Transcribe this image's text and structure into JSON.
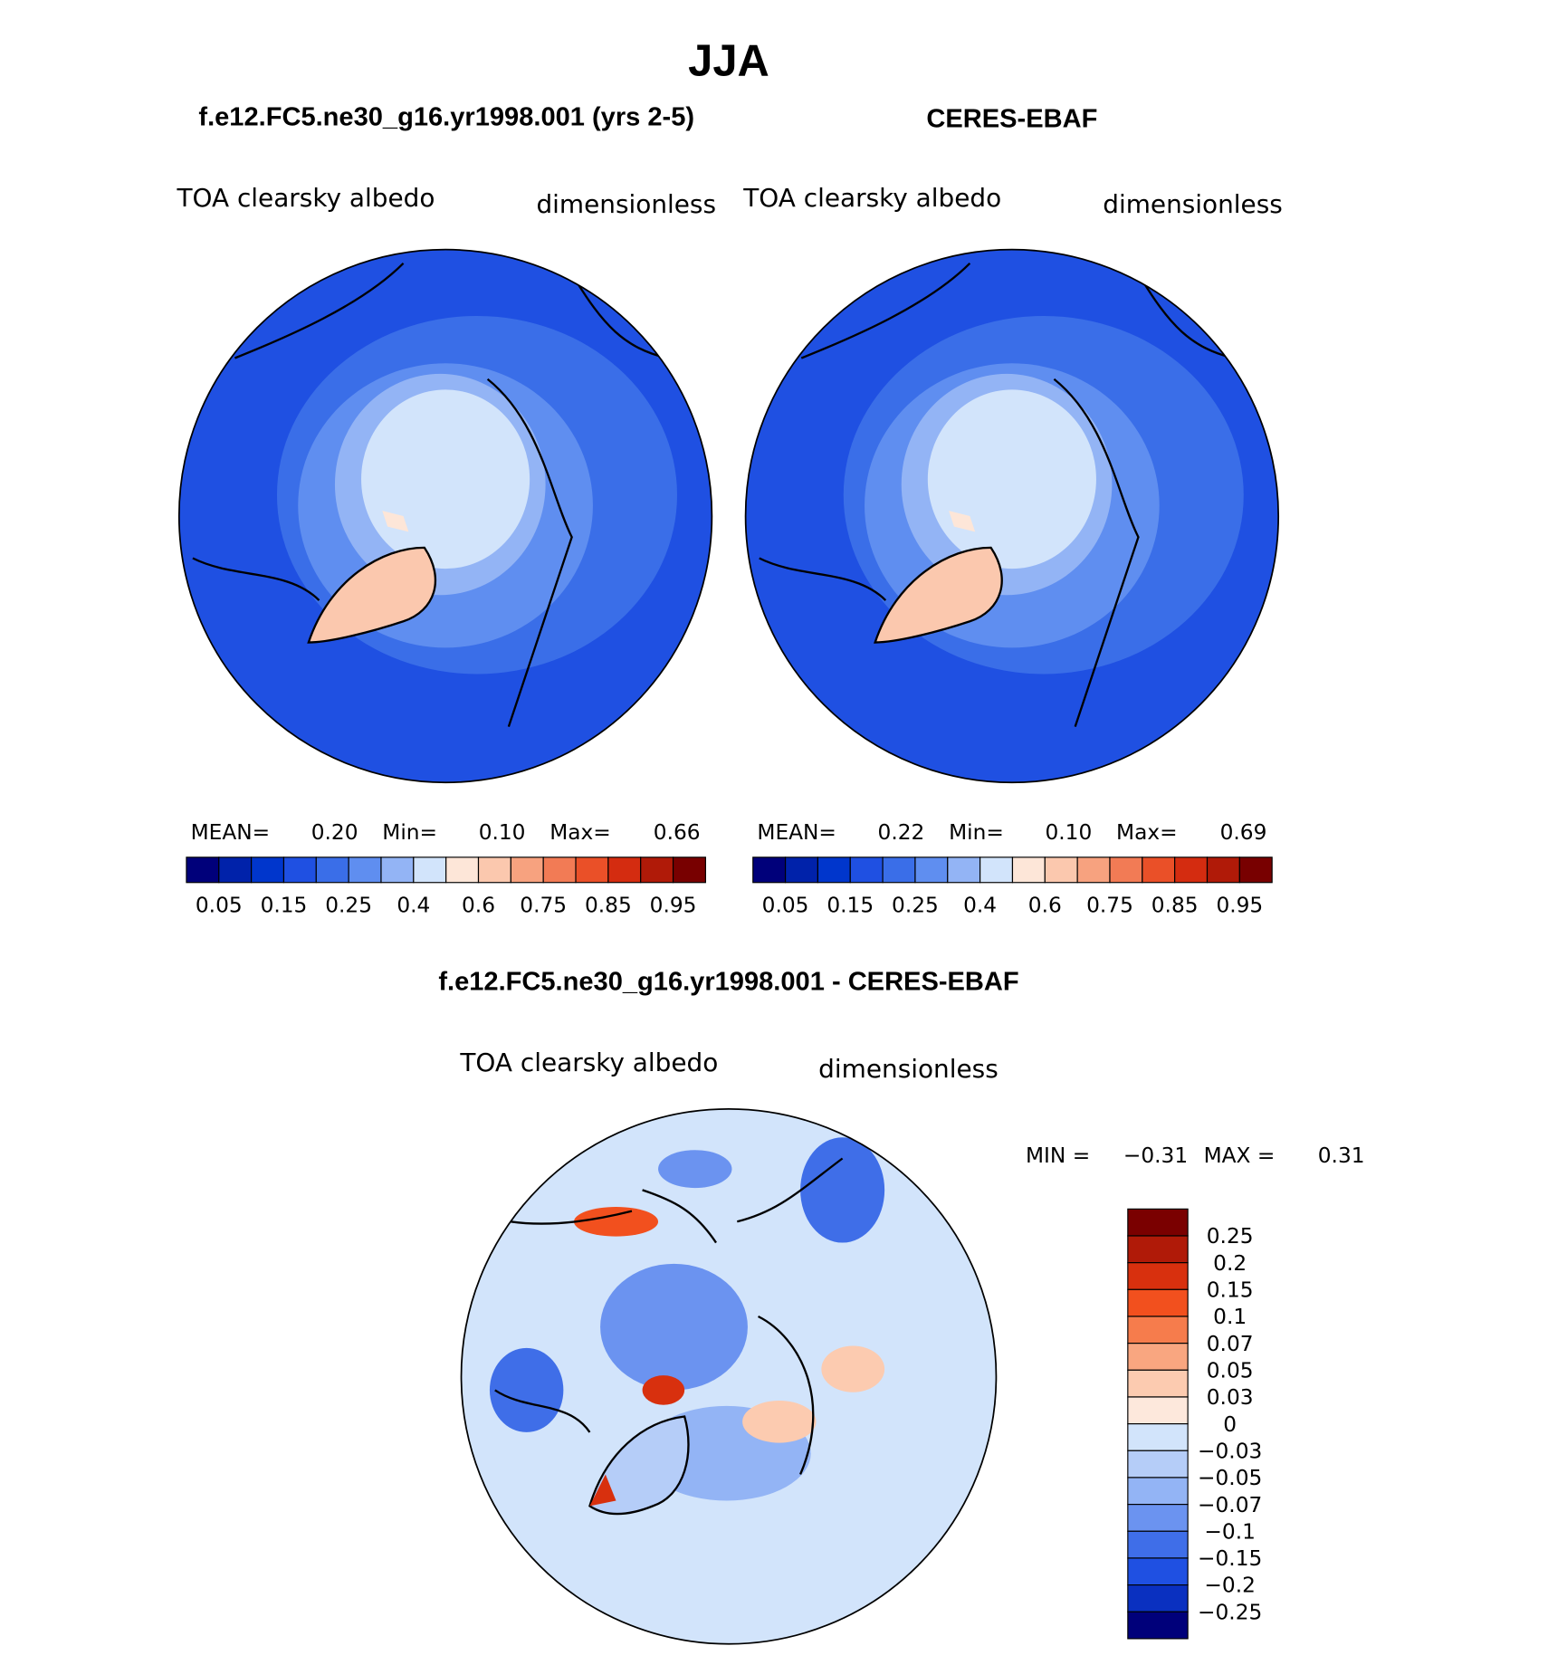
{
  "title": "JJA",
  "panels": [
    {
      "title": "f.e12.FC5.ne30_g16.yr1998.001 (yrs 2-5)",
      "variable": "TOA clearsky albedo",
      "units": "dimensionless",
      "stats": [
        {
          "label": "MEAN=",
          "value": "0.20"
        },
        {
          "label": "Min=",
          "value": "0.10"
        },
        {
          "label": "Max=",
          "value": "0.66"
        }
      ]
    },
    {
      "title": "CERES-EBAF",
      "variable": "TOA clearsky albedo",
      "units": "dimensionless",
      "stats": [
        {
          "label": "MEAN=",
          "value": "0.22"
        },
        {
          "label": "Min=",
          "value": "0.10"
        },
        {
          "label": "Max=",
          "value": "0.69"
        }
      ]
    }
  ],
  "colorbar": {
    "colors": [
      "#00007a",
      "#0022aa",
      "#0036cc",
      "#1f50e2",
      "#3a6ee8",
      "#5f8ef0",
      "#93b4f5",
      "#d2e4fb",
      "#fde6d8",
      "#fbc8ae",
      "#f7a27f",
      "#f27b55",
      "#ea5028",
      "#d42c10",
      "#b01a08",
      "#780000"
    ],
    "labels": [
      "0.05",
      "0.15",
      "0.25",
      "0.4",
      "0.6",
      "0.75",
      "0.85",
      "0.95"
    ]
  },
  "difference": {
    "title": "f.e12.FC5.ne30_g16.yr1998.001 - CERES-EBAF",
    "variable": "TOA clearsky albedo",
    "units": "dimensionless",
    "stats": [
      {
        "label": "MIN =",
        "value": "−0.31"
      },
      {
        "label": "MAX =",
        "value": "0.31"
      }
    ],
    "colorbar": {
      "colors": [
        "#7a0000",
        "#b01a08",
        "#d8300e",
        "#f2501e",
        "#f67c4c",
        "#f9a680",
        "#fccbb0",
        "#fde8dc",
        "#d2e4fb",
        "#b5cdf8",
        "#93b4f5",
        "#6b93f0",
        "#3f6ee8",
        "#1f50e2",
        "#0a30c0",
        "#00007a"
      ],
      "labels": [
        "0.25",
        "0.2",
        "0.15",
        "0.1",
        "0.07",
        "0.05",
        "0.03",
        "0",
        "−0.03",
        "−0.05",
        "−0.07",
        "−0.1",
        "−0.15",
        "−0.2",
        "−0.25"
      ]
    }
  }
}
